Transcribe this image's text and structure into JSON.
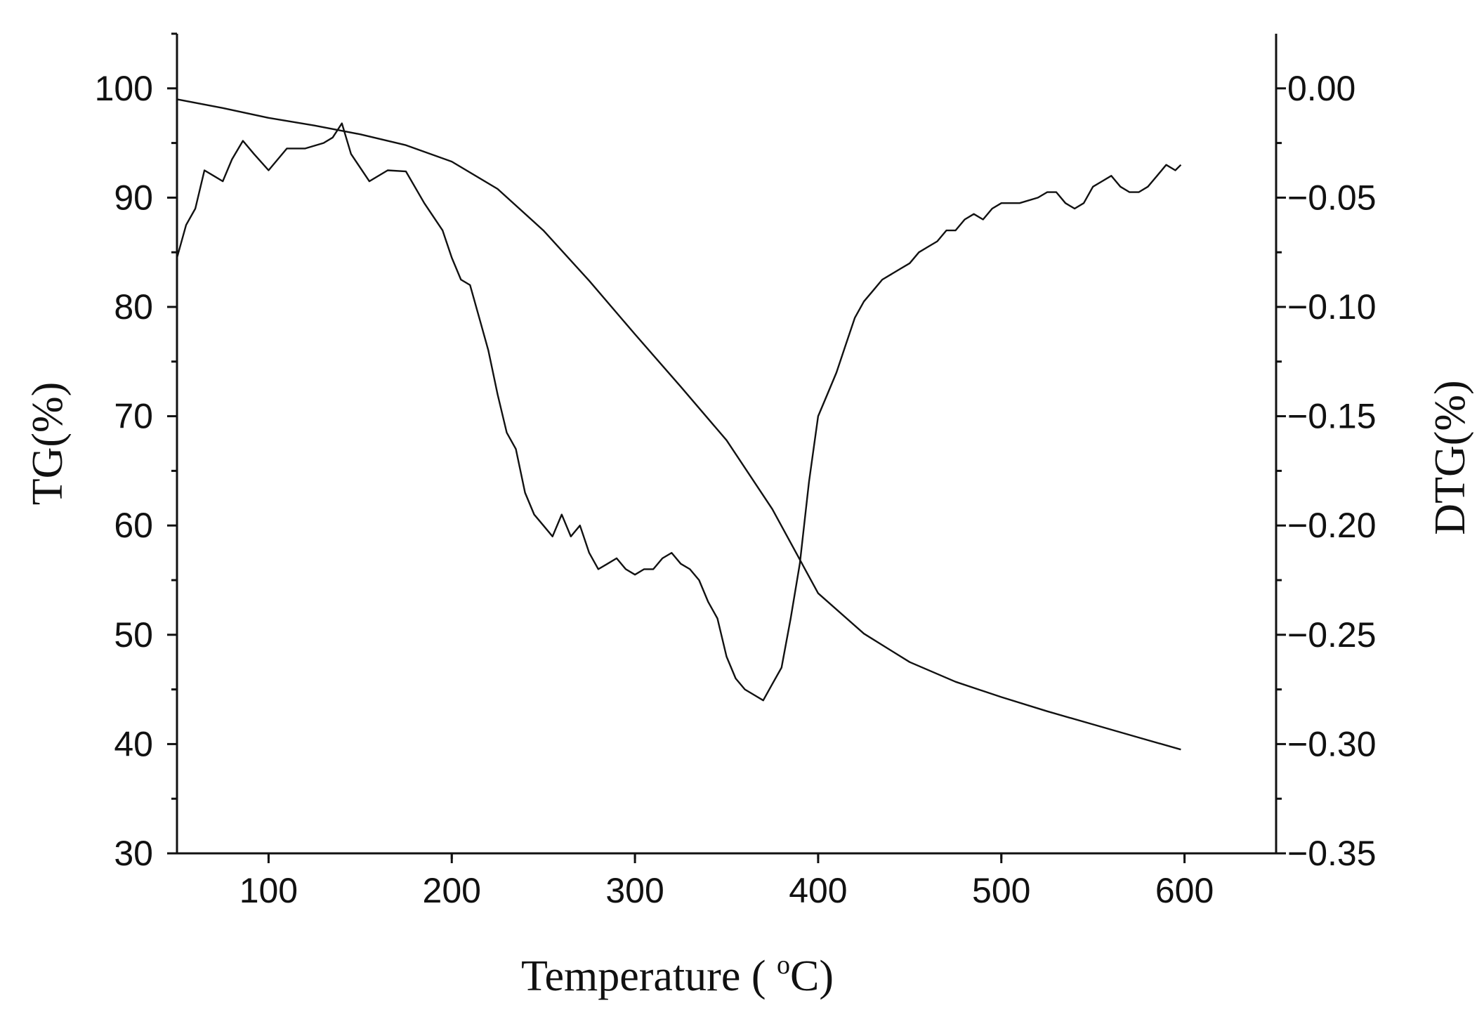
{
  "chart_data": {
    "type": "line",
    "title": "",
    "xlabel": "Temperature ( °C)",
    "xlabel_parts": {
      "before": "Temperature ( ",
      "superscript": "o",
      "after": "C)"
    },
    "ylabel_left": "TG(%)",
    "ylabel_right": "DTG(%)",
    "xlim": [
      50,
      650
    ],
    "ylim_left": [
      30,
      105
    ],
    "ylim_right": [
      -0.35,
      0.025
    ],
    "x_ticks": [
      100,
      200,
      300,
      400,
      500,
      600
    ],
    "x_tick_labels": [
      "100",
      "200",
      "300",
      "400",
      "500",
      "600"
    ],
    "y_left_ticks": [
      30,
      40,
      50,
      60,
      70,
      80,
      90,
      100
    ],
    "y_left_tick_labels": [
      "30",
      "40",
      "50",
      "60",
      "70",
      "80",
      "90",
      "100"
    ],
    "y_right_ticks": [
      -0.35,
      -0.3,
      -0.25,
      -0.2,
      -0.15,
      -0.1,
      -0.05,
      0.0
    ],
    "y_right_tick_labels": [
      "−0.35",
      "−0.30",
      "−0.25",
      "−0.20",
      "−0.15",
      "−0.10",
      "−0.05",
      "0.00"
    ],
    "grid": false,
    "legend": "none",
    "series": [
      {
        "axis": "left",
        "points": [
          [
            50,
            99.0
          ],
          [
            75,
            98.2
          ],
          [
            100,
            97.3
          ],
          [
            125,
            96.6
          ],
          [
            150,
            95.8
          ],
          [
            175,
            94.8
          ],
          [
            200,
            93.3
          ],
          [
            225,
            90.8
          ],
          [
            250,
            87.0
          ],
          [
            275,
            82.4
          ],
          [
            300,
            77.5
          ],
          [
            325,
            72.7
          ],
          [
            350,
            67.8
          ],
          [
            375,
            61.5
          ],
          [
            400,
            53.8
          ],
          [
            425,
            50.1
          ],
          [
            450,
            47.5
          ],
          [
            475,
            45.7
          ],
          [
            500,
            44.3
          ],
          [
            525,
            43.0
          ],
          [
            550,
            41.8
          ],
          [
            575,
            40.6
          ],
          [
            598,
            39.5
          ]
        ]
      },
      {
        "axis": "right",
        "points": [
          [
            50,
            -0.0775
          ],
          [
            55,
            -0.0625
          ],
          [
            60,
            -0.055
          ],
          [
            65,
            -0.0375
          ],
          [
            70,
            -0.04
          ],
          [
            75,
            -0.0425
          ],
          [
            80,
            -0.0325
          ],
          [
            86,
            -0.024
          ],
          [
            92,
            -0.03
          ],
          [
            100,
            -0.0375
          ],
          [
            105,
            -0.0325
          ],
          [
            110,
            -0.0275
          ],
          [
            120,
            -0.0275
          ],
          [
            130,
            -0.025
          ],
          [
            135,
            -0.0225
          ],
          [
            140,
            -0.016
          ],
          [
            145,
            -0.03
          ],
          [
            155,
            -0.0425
          ],
          [
            165,
            -0.0375
          ],
          [
            175,
            -0.038
          ],
          [
            185,
            -0.0525
          ],
          [
            195,
            -0.065
          ],
          [
            200,
            -0.0775
          ],
          [
            205,
            -0.0875
          ],
          [
            210,
            -0.09
          ],
          [
            215,
            -0.105
          ],
          [
            220,
            -0.12
          ],
          [
            225,
            -0.14
          ],
          [
            230,
            -0.1575
          ],
          [
            235,
            -0.165
          ],
          [
            240,
            -0.185
          ],
          [
            245,
            -0.195
          ],
          [
            250,
            -0.2
          ],
          [
            255,
            -0.205
          ],
          [
            260,
            -0.195
          ],
          [
            265,
            -0.205
          ],
          [
            270,
            -0.2
          ],
          [
            275,
            -0.2125
          ],
          [
            280,
            -0.22
          ],
          [
            285,
            -0.2175
          ],
          [
            290,
            -0.215
          ],
          [
            295,
            -0.22
          ],
          [
            300,
            -0.2225
          ],
          [
            305,
            -0.22
          ],
          [
            310,
            -0.22
          ],
          [
            315,
            -0.215
          ],
          [
            320,
            -0.2125
          ],
          [
            325,
            -0.2175
          ],
          [
            330,
            -0.22
          ],
          [
            335,
            -0.225
          ],
          [
            340,
            -0.235
          ],
          [
            345,
            -0.2425
          ],
          [
            350,
            -0.26
          ],
          [
            355,
            -0.27
          ],
          [
            360,
            -0.275
          ],
          [
            365,
            -0.2775
          ],
          [
            370,
            -0.28
          ],
          [
            375,
            -0.2725
          ],
          [
            380,
            -0.265
          ],
          [
            385,
            -0.2425
          ],
          [
            390,
            -0.2175
          ],
          [
            395,
            -0.18
          ],
          [
            400,
            -0.15
          ],
          [
            405,
            -0.14
          ],
          [
            410,
            -0.13
          ],
          [
            415,
            -0.1175
          ],
          [
            420,
            -0.105
          ],
          [
            425,
            -0.0975
          ],
          [
            430,
            -0.0925
          ],
          [
            435,
            -0.0875
          ],
          [
            440,
            -0.085
          ],
          [
            445,
            -0.0825
          ],
          [
            450,
            -0.08
          ],
          [
            455,
            -0.075
          ],
          [
            460,
            -0.0725
          ],
          [
            465,
            -0.07
          ],
          [
            470,
            -0.065
          ],
          [
            475,
            -0.065
          ],
          [
            480,
            -0.06
          ],
          [
            485,
            -0.0575
          ],
          [
            490,
            -0.06
          ],
          [
            495,
            -0.055
          ],
          [
            500,
            -0.0525
          ],
          [
            505,
            -0.0525
          ],
          [
            510,
            -0.0525
          ],
          [
            520,
            -0.05
          ],
          [
            525,
            -0.0475
          ],
          [
            530,
            -0.0475
          ],
          [
            535,
            -0.0525
          ],
          [
            540,
            -0.055
          ],
          [
            545,
            -0.0525
          ],
          [
            550,
            -0.045
          ],
          [
            555,
            -0.0425
          ],
          [
            560,
            -0.04
          ],
          [
            565,
            -0.045
          ],
          [
            570,
            -0.0475
          ],
          [
            575,
            -0.0475
          ],
          [
            580,
            -0.045
          ],
          [
            585,
            -0.04
          ],
          [
            590,
            -0.035
          ],
          [
            595,
            -0.0375
          ],
          [
            598,
            -0.035
          ]
        ]
      }
    ]
  }
}
